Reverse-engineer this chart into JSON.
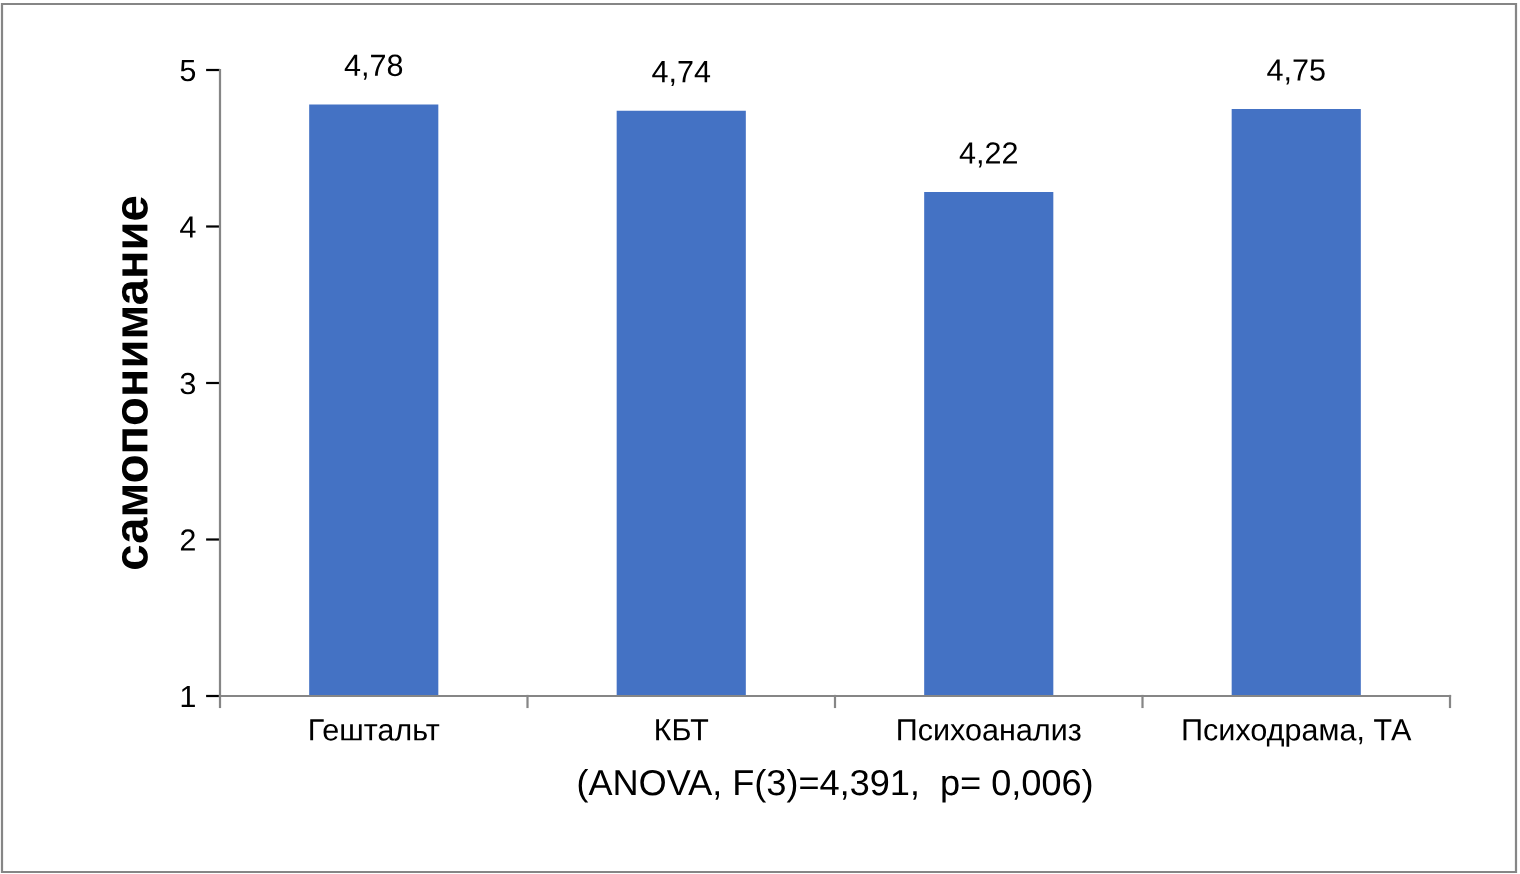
{
  "chart_data": {
    "type": "bar",
    "xlabel": "(ANOVA, F(3)=4,391,  p= 0,006)",
    "ylabel": "самопонимание",
    "categories": [
      "Гештальт",
      "КБТ",
      "Психоанализ",
      "Психодрама, ТА"
    ],
    "values": [
      4.78,
      4.74,
      4.22,
      4.75
    ],
    "value_labels": [
      "4,78",
      "4,74",
      "4,22",
      "4,75"
    ],
    "color": "#4472c4",
    "ylim": [
      1,
      5
    ],
    "yticks": [
      1,
      2,
      3,
      4,
      5
    ],
    "grid": false,
    "legend": false
  }
}
